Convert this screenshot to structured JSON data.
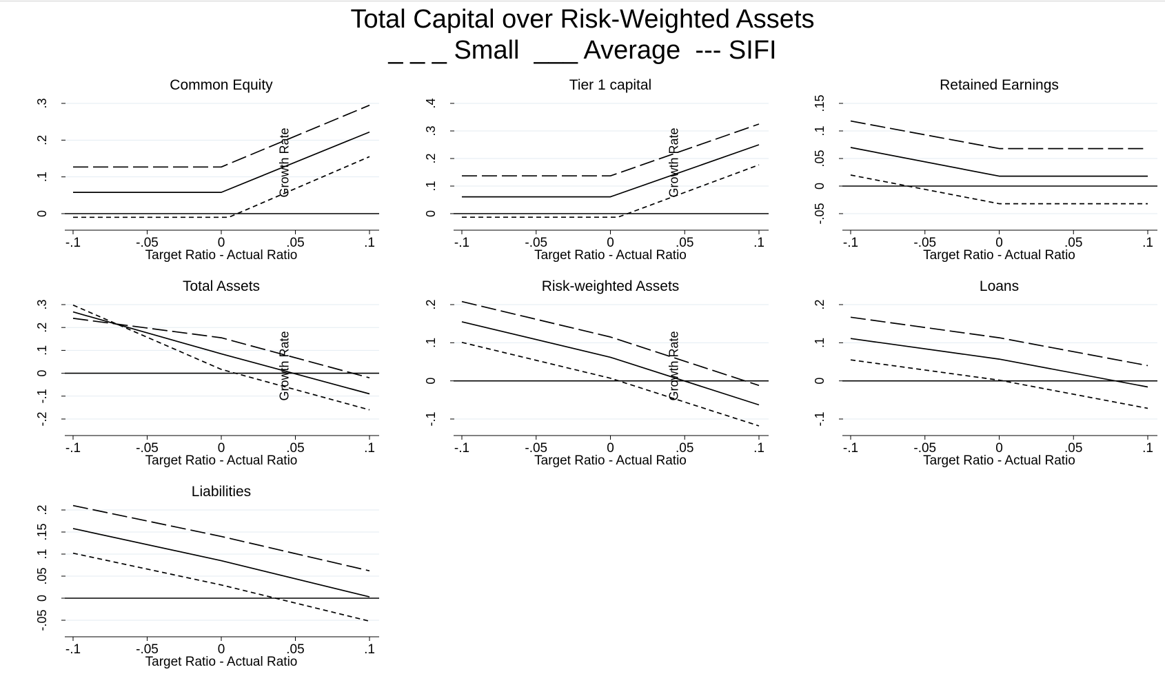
{
  "figure": {
    "title": "Total Capital over Risk-Weighted Assets",
    "legend_text": "_ _ _ Small  ___ Average  --- SIFI"
  },
  "chart_data": [
    {
      "type": "line",
      "title": "Common Equity",
      "xlabel": "Target Ratio - Actual Ratio",
      "ylabel": "Growth Rate",
      "xlim": [
        -0.1,
        0.1
      ],
      "ylim": [
        0,
        0.3
      ],
      "xticks": [
        -0.1,
        -0.05,
        0,
        0.05,
        0.1
      ],
      "xtick_labels": [
        "-.1",
        "-.05",
        "0",
        ".05",
        ".1"
      ],
      "yticks": [
        0,
        0.1,
        0.2,
        0.3
      ],
      "ytick_labels": [
        "0",
        ".1",
        ".2",
        ".3"
      ],
      "series": [
        {
          "name": "Small",
          "style": "long-dash",
          "x": [
            -0.1,
            0,
            0.1
          ],
          "y": [
            0.127,
            0.127,
            0.295
          ]
        },
        {
          "name": "Average",
          "style": "solid",
          "x": [
            -0.1,
            0,
            0.1
          ],
          "y": [
            0.058,
            0.058,
            0.222
          ]
        },
        {
          "name": "SIFI",
          "style": "short-dash",
          "x": [
            -0.1,
            0.005,
            0.1
          ],
          "y": [
            -0.01,
            -0.01,
            0.155
          ]
        }
      ]
    },
    {
      "type": "line",
      "title": "Tier 1 capital",
      "xlabel": "Target Ratio - Actual Ratio",
      "ylabel": "Growth Rate",
      "xlim": [
        -0.1,
        0.1
      ],
      "ylim": [
        0,
        0.4
      ],
      "xticks": [
        -0.1,
        -0.05,
        0,
        0.05,
        0.1
      ],
      "xtick_labels": [
        "-.1",
        "-.05",
        "0",
        ".05",
        ".1"
      ],
      "yticks": [
        0,
        0.1,
        0.2,
        0.3,
        0.4
      ],
      "ytick_labels": [
        "0",
        ".1",
        ".2",
        ".3",
        ".4"
      ],
      "series": [
        {
          "name": "Small",
          "style": "long-dash",
          "x": [
            -0.1,
            0,
            0.1
          ],
          "y": [
            0.137,
            0.137,
            0.325
          ]
        },
        {
          "name": "Average",
          "style": "solid",
          "x": [
            -0.1,
            0,
            0.1
          ],
          "y": [
            0.061,
            0.061,
            0.25
          ]
        },
        {
          "name": "SIFI",
          "style": "short-dash",
          "x": [
            -0.1,
            0.005,
            0.1
          ],
          "y": [
            -0.013,
            -0.013,
            0.177
          ]
        }
      ]
    },
    {
      "type": "line",
      "title": "Retained Earnings",
      "xlabel": "Target Ratio - Actual Ratio",
      "ylabel": "",
      "xlim": [
        -0.1,
        0.1
      ],
      "ylim": [
        -0.05,
        0.15
      ],
      "xticks": [
        -0.1,
        -0.05,
        0,
        0.05,
        0.1
      ],
      "xtick_labels": [
        "-.1",
        "-.05",
        "0",
        ".05",
        ".1"
      ],
      "yticks": [
        -0.05,
        0,
        0.05,
        0.1,
        0.15
      ],
      "ytick_labels": [
        "-.05",
        "0",
        ".05",
        ".1",
        ".15"
      ],
      "series": [
        {
          "name": "Small",
          "style": "long-dash",
          "x": [
            -0.1,
            0,
            0.1
          ],
          "y": [
            0.118,
            0.068,
            0.068
          ]
        },
        {
          "name": "Average",
          "style": "solid",
          "x": [
            -0.1,
            0,
            0.1
          ],
          "y": [
            0.07,
            0.018,
            0.018
          ]
        },
        {
          "name": "SIFI",
          "style": "short-dash",
          "x": [
            -0.1,
            0,
            0.1
          ],
          "y": [
            0.02,
            -0.032,
            -0.032
          ]
        }
      ]
    },
    {
      "type": "line",
      "title": "Total Assets",
      "xlabel": "Target Ratio - Actual Ratio",
      "ylabel": "Growth Rate",
      "xlim": [
        -0.1,
        0.1
      ],
      "ylim": [
        -0.2,
        0.3
      ],
      "xticks": [
        -0.1,
        -0.05,
        0,
        0.05,
        0.1
      ],
      "xtick_labels": [
        "-.1",
        "-.05",
        "0",
        ".05",
        ".1"
      ],
      "yticks": [
        -0.2,
        -0.1,
        0,
        0.1,
        0.2,
        0.3
      ],
      "ytick_labels": [
        "-.2",
        "-.1",
        "0",
        ".1",
        ".2",
        ".3"
      ],
      "series": [
        {
          "name": "Small",
          "style": "long-dash",
          "x": [
            -0.1,
            0,
            0.1
          ],
          "y": [
            0.24,
            0.155,
            -0.02
          ]
        },
        {
          "name": "Average",
          "style": "solid",
          "x": [
            -0.1,
            0,
            0.1
          ],
          "y": [
            0.268,
            0.085,
            -0.09
          ]
        },
        {
          "name": "SIFI",
          "style": "short-dash",
          "x": [
            -0.1,
            0,
            0.1
          ],
          "y": [
            0.298,
            0.017,
            -0.16
          ]
        }
      ]
    },
    {
      "type": "line",
      "title": "Risk-weighted Assets",
      "xlabel": "Target Ratio - Actual Ratio",
      "ylabel": "Growth Rate",
      "xlim": [
        -0.1,
        0.1
      ],
      "ylim": [
        -0.1,
        0.2
      ],
      "xticks": [
        -0.1,
        -0.05,
        0,
        0.05,
        0.1
      ],
      "xtick_labels": [
        "-.1",
        "-.05",
        "0",
        ".05",
        ".1"
      ],
      "yticks": [
        -0.1,
        0,
        0.1,
        0.2
      ],
      "ytick_labels": [
        "-.1",
        "0",
        ".1",
        ".2"
      ],
      "series": [
        {
          "name": "Small",
          "style": "long-dash",
          "x": [
            -0.1,
            0,
            0.1
          ],
          "y": [
            0.208,
            0.115,
            -0.012
          ]
        },
        {
          "name": "Average",
          "style": "solid",
          "x": [
            -0.1,
            0,
            0.1
          ],
          "y": [
            0.155,
            0.062,
            -0.063
          ]
        },
        {
          "name": "SIFI",
          "style": "short-dash",
          "x": [
            -0.1,
            0,
            0.1
          ],
          "y": [
            0.101,
            0.007,
            -0.118
          ]
        }
      ]
    },
    {
      "type": "line",
      "title": "Loans",
      "xlabel": "Target Ratio - Actual Ratio",
      "ylabel": "",
      "xlim": [
        -0.1,
        0.1
      ],
      "ylim": [
        -0.1,
        0.2
      ],
      "xticks": [
        -0.1,
        -0.05,
        0,
        0.05,
        0.1
      ],
      "xtick_labels": [
        "-.1",
        "-.05",
        "0",
        ".05",
        ".1"
      ],
      "yticks": [
        -0.1,
        0,
        0.1,
        0.2
      ],
      "ytick_labels": [
        "-.1",
        "0",
        ".1",
        ".2"
      ],
      "series": [
        {
          "name": "Small",
          "style": "long-dash",
          "x": [
            -0.1,
            0,
            0.1
          ],
          "y": [
            0.167,
            0.113,
            0.04
          ]
        },
        {
          "name": "Average",
          "style": "solid",
          "x": [
            -0.1,
            0,
            0.1
          ],
          "y": [
            0.111,
            0.057,
            -0.016
          ]
        },
        {
          "name": "SIFI",
          "style": "short-dash",
          "x": [
            -0.1,
            0,
            0.1
          ],
          "y": [
            0.055,
            0.002,
            -0.072
          ]
        }
      ]
    },
    {
      "type": "line",
      "title": "Liabilities",
      "xlabel": "Target Ratio - Actual Ratio",
      "ylabel": "",
      "xlim": [
        -0.1,
        0.1
      ],
      "ylim": [
        -0.05,
        0.2
      ],
      "xticks": [
        -0.1,
        -0.05,
        0,
        0.05,
        0.1
      ],
      "xtick_labels": [
        "-.1",
        "-.05",
        "0",
        ".05",
        ".1"
      ],
      "yticks": [
        -0.05,
        0,
        0.05,
        0.1,
        0.15,
        0.2
      ],
      "ytick_labels": [
        "-.05",
        "0",
        ".05",
        ".1",
        ".15",
        ".2"
      ],
      "series": [
        {
          "name": "Small",
          "style": "long-dash",
          "x": [
            -0.1,
            0,
            0.1
          ],
          "y": [
            0.21,
            0.14,
            0.062
          ]
        },
        {
          "name": "Average",
          "style": "solid",
          "x": [
            -0.1,
            0,
            0.1
          ],
          "y": [
            0.158,
            0.085,
            0.003
          ]
        },
        {
          "name": "SIFI",
          "style": "short-dash",
          "x": [
            -0.1,
            0,
            0.1
          ],
          "y": [
            0.102,
            0.03,
            -0.052
          ]
        }
      ]
    }
  ]
}
